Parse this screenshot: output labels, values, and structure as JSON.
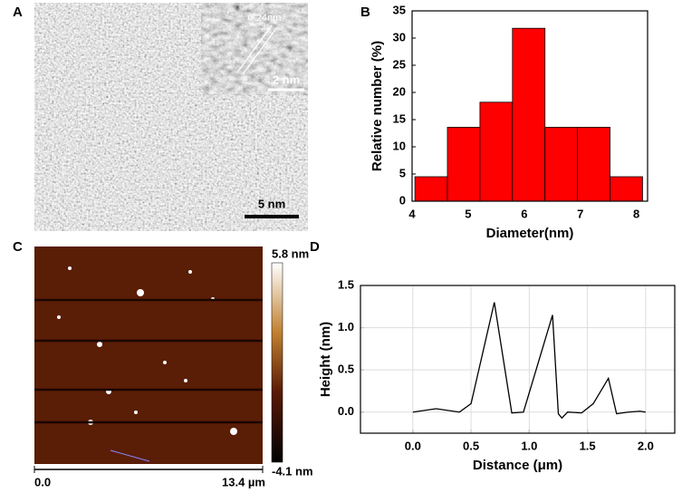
{
  "panel_labels": [
    "A",
    "B",
    "C",
    "D"
  ],
  "tem_image": {
    "lattice_label": "0.24nm",
    "inset_scale": "2 nm",
    "scale": "5 nm"
  },
  "afm_image": {
    "colorbar_max": "5.8 nm",
    "colorbar_min": "-4.1 nm",
    "x_start": "0.0",
    "x_end": "13.4 µm"
  },
  "chart_data": [
    {
      "type": "histogram",
      "x_label": "Diameter(nm)",
      "y_label": "Relative number (%)",
      "bins": [
        4.05,
        4.63,
        5.21,
        5.79,
        6.37,
        6.95,
        7.53,
        8.11
      ],
      "values": [
        4.5,
        13.6,
        18.2,
        31.8,
        13.6,
        13.6,
        4.5
      ],
      "color": "#ff0000",
      "xlim": [
        4,
        8.2
      ],
      "xticks": [
        4,
        5,
        6,
        7,
        8
      ],
      "ylim": [
        0,
        35
      ],
      "yticks": [
        0,
        5,
        10,
        15,
        20,
        25,
        30,
        35
      ],
      "grid": false
    },
    {
      "type": "line",
      "x_label": "Distance (μm)",
      "y_label": "Height (nm)",
      "x": [
        0.0,
        0.2,
        0.4,
        0.5,
        0.7,
        0.85,
        0.95,
        1.2,
        1.25,
        1.28,
        1.33,
        1.45,
        1.55,
        1.68,
        1.75,
        1.85,
        1.95,
        2.0
      ],
      "values": [
        0.0,
        0.04,
        0.0,
        0.1,
        1.3,
        -0.01,
        0.0,
        1.15,
        -0.02,
        -0.07,
        0.0,
        -0.01,
        0.1,
        0.4,
        -0.02,
        0.0,
        0.01,
        0.0
      ],
      "color": "#000000",
      "xlim": [
        -0.45,
        2.25
      ],
      "xticks": [
        {
          "value": 0,
          "label": "0.0"
        },
        0.5,
        {
          "value": 1,
          "label": "1.0"
        },
        1.5,
        {
          "value": 2,
          "label": "2.0"
        }
      ],
      "ylim": [
        -0.25,
        1.5
      ],
      "yticks": [
        {
          "value": 0,
          "label": "0.0"
        },
        0.5,
        {
          "value": 1,
          "label": "1.0"
        },
        1.5
      ],
      "grid": true
    }
  ]
}
